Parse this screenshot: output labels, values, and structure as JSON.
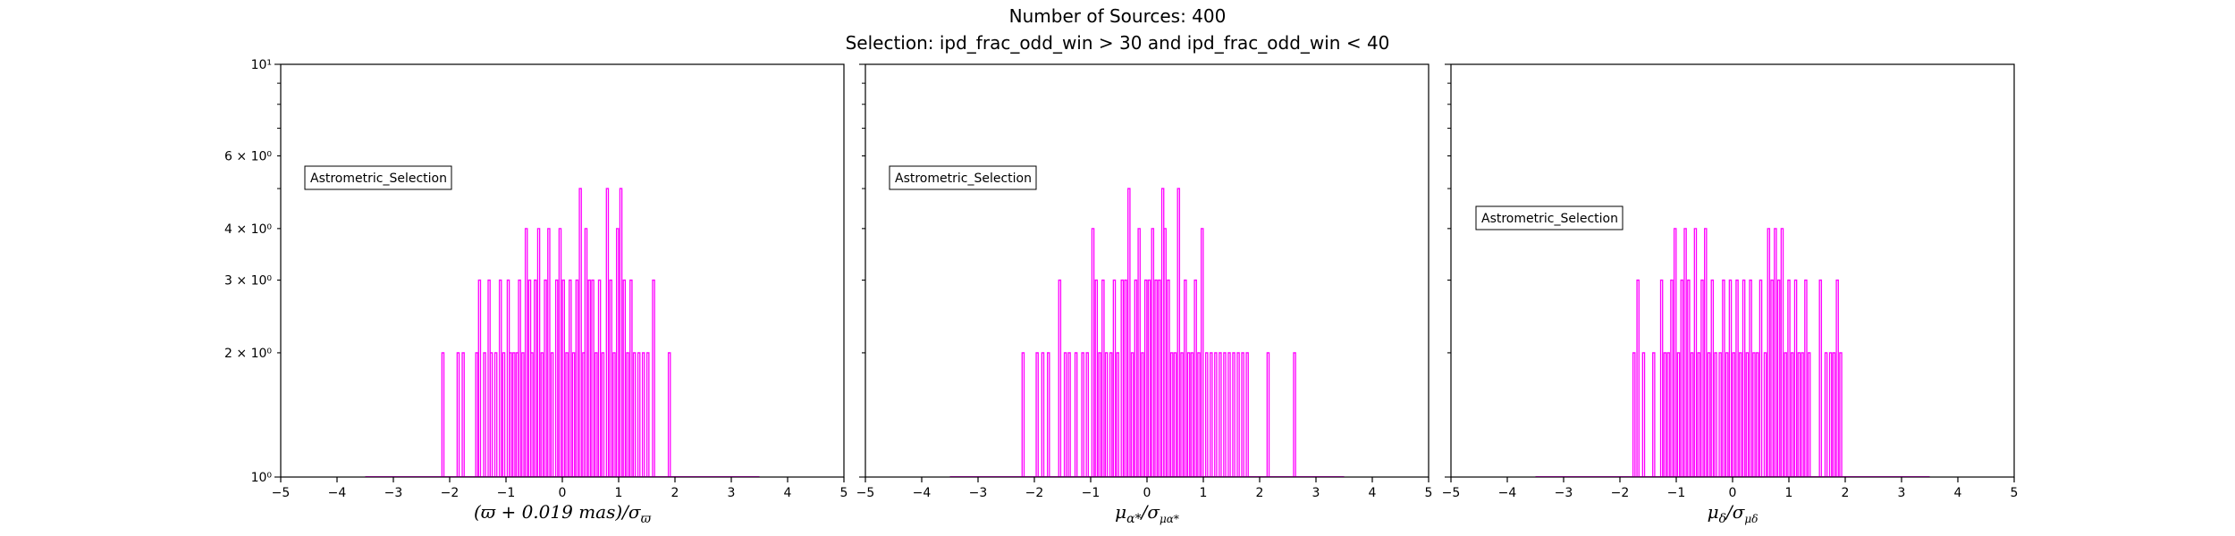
{
  "figure": {
    "title_line1": "Number of Sources: 400",
    "title_line2": "Selection: ipd_frac_odd_win > 30 and ipd_frac_odd_win < 40"
  },
  "chart_data": [
    {
      "type": "bar",
      "xlabel": "(ϖ + 0.019 mas)/σϖ",
      "ylabel": "",
      "xlim": [
        -5,
        5
      ],
      "ylim": [
        1,
        10
      ],
      "yscale": "log",
      "xticks": [
        "−5",
        "−4",
        "−3",
        "−2",
        "−1",
        "0",
        "1",
        "2",
        "3",
        "4",
        "5"
      ],
      "yticks": [
        {
          "value": 1,
          "label": "10⁰"
        },
        {
          "value": 2,
          "label": "2 × 10⁰"
        },
        {
          "value": 3,
          "label": "3 × 10⁰"
        },
        {
          "value": 4,
          "label": "4 × 10⁰"
        },
        {
          "value": 6,
          "label": "6 × 10⁰"
        },
        {
          "value": 10,
          "label": "10¹"
        }
      ],
      "legend": {
        "label": "Astrometric_Selection",
        "placement": "upper-left"
      },
      "color": "#ff00ff",
      "bins": [
        {
          "x": -2.12,
          "count": 2
        },
        {
          "x": -1.85,
          "count": 2
        },
        {
          "x": -1.76,
          "count": 2
        },
        {
          "x": -1.52,
          "count": 2
        },
        {
          "x": -1.47,
          "count": 3
        },
        {
          "x": -1.38,
          "count": 2
        },
        {
          "x": -1.3,
          "count": 3
        },
        {
          "x": -1.26,
          "count": 2
        },
        {
          "x": -1.18,
          "count": 2
        },
        {
          "x": -1.1,
          "count": 3
        },
        {
          "x": -1.04,
          "count": 2
        },
        {
          "x": -0.96,
          "count": 3
        },
        {
          "x": -0.92,
          "count": 2
        },
        {
          "x": -0.86,
          "count": 2
        },
        {
          "x": -0.8,
          "count": 2
        },
        {
          "x": -0.76,
          "count": 3
        },
        {
          "x": -0.7,
          "count": 2
        },
        {
          "x": -0.64,
          "count": 4
        },
        {
          "x": -0.58,
          "count": 3
        },
        {
          "x": -0.54,
          "count": 2
        },
        {
          "x": -0.48,
          "count": 3
        },
        {
          "x": -0.42,
          "count": 4
        },
        {
          "x": -0.36,
          "count": 2
        },
        {
          "x": -0.3,
          "count": 3
        },
        {
          "x": -0.24,
          "count": 4
        },
        {
          "x": -0.18,
          "count": 2
        },
        {
          "x": -0.1,
          "count": 3
        },
        {
          "x": -0.04,
          "count": 4
        },
        {
          "x": 0.02,
          "count": 3
        },
        {
          "x": 0.08,
          "count": 2
        },
        {
          "x": 0.14,
          "count": 3
        },
        {
          "x": 0.2,
          "count": 2
        },
        {
          "x": 0.26,
          "count": 3
        },
        {
          "x": 0.32,
          "count": 5
        },
        {
          "x": 0.38,
          "count": 2
        },
        {
          "x": 0.42,
          "count": 4
        },
        {
          "x": 0.48,
          "count": 3
        },
        {
          "x": 0.54,
          "count": 3
        },
        {
          "x": 0.6,
          "count": 2
        },
        {
          "x": 0.66,
          "count": 3
        },
        {
          "x": 0.72,
          "count": 2
        },
        {
          "x": 0.8,
          "count": 5
        },
        {
          "x": 0.86,
          "count": 3
        },
        {
          "x": 0.92,
          "count": 2
        },
        {
          "x": 0.98,
          "count": 4
        },
        {
          "x": 1.04,
          "count": 5
        },
        {
          "x": 1.1,
          "count": 3
        },
        {
          "x": 1.16,
          "count": 2
        },
        {
          "x": 1.22,
          "count": 3
        },
        {
          "x": 1.28,
          "count": 2
        },
        {
          "x": 1.36,
          "count": 2
        },
        {
          "x": 1.44,
          "count": 2
        },
        {
          "x": 1.52,
          "count": 2
        },
        {
          "x": 1.62,
          "count": 3
        },
        {
          "x": 1.9,
          "count": 2
        }
      ]
    },
    {
      "type": "bar",
      "xlabel": "μα*/σμα*",
      "ylabel": "",
      "xlim": [
        -5,
        5
      ],
      "ylim": [
        1,
        10
      ],
      "yscale": "log",
      "xticks": [
        "−5",
        "−4",
        "−3",
        "−2",
        "−1",
        "0",
        "1",
        "2",
        "3",
        "4",
        "5"
      ],
      "yticks": [
        {
          "value": 1,
          "label": ""
        },
        {
          "value": 2,
          "label": ""
        },
        {
          "value": 3,
          "label": ""
        },
        {
          "value": 4,
          "label": ""
        },
        {
          "value": 6,
          "label": ""
        },
        {
          "value": 10,
          "label": ""
        }
      ],
      "legend": {
        "label": "Astrometric_Selection",
        "placement": "upper-left"
      },
      "color": "#ff00ff",
      "bins": [
        {
          "x": -2.2,
          "count": 2
        },
        {
          "x": -1.95,
          "count": 2
        },
        {
          "x": -1.85,
          "count": 2
        },
        {
          "x": -1.75,
          "count": 2
        },
        {
          "x": -1.55,
          "count": 3
        },
        {
          "x": -1.45,
          "count": 2
        },
        {
          "x": -1.38,
          "count": 2
        },
        {
          "x": -1.26,
          "count": 2
        },
        {
          "x": -1.14,
          "count": 2
        },
        {
          "x": -1.06,
          "count": 2
        },
        {
          "x": -0.96,
          "count": 4
        },
        {
          "x": -0.9,
          "count": 3
        },
        {
          "x": -0.84,
          "count": 2
        },
        {
          "x": -0.78,
          "count": 3
        },
        {
          "x": -0.72,
          "count": 2
        },
        {
          "x": -0.64,
          "count": 2
        },
        {
          "x": -0.58,
          "count": 3
        },
        {
          "x": -0.52,
          "count": 2
        },
        {
          "x": -0.44,
          "count": 3
        },
        {
          "x": -0.38,
          "count": 3
        },
        {
          "x": -0.32,
          "count": 5
        },
        {
          "x": -0.26,
          "count": 2
        },
        {
          "x": -0.2,
          "count": 3
        },
        {
          "x": -0.14,
          "count": 4
        },
        {
          "x": -0.08,
          "count": 2
        },
        {
          "x": -0.02,
          "count": 3
        },
        {
          "x": 0.04,
          "count": 3
        },
        {
          "x": 0.1,
          "count": 4
        },
        {
          "x": 0.16,
          "count": 3
        },
        {
          "x": 0.22,
          "count": 3
        },
        {
          "x": 0.28,
          "count": 5
        },
        {
          "x": 0.32,
          "count": 4
        },
        {
          "x": 0.38,
          "count": 3
        },
        {
          "x": 0.44,
          "count": 2
        },
        {
          "x": 0.5,
          "count": 2
        },
        {
          "x": 0.56,
          "count": 5
        },
        {
          "x": 0.62,
          "count": 2
        },
        {
          "x": 0.68,
          "count": 3
        },
        {
          "x": 0.74,
          "count": 2
        },
        {
          "x": 0.8,
          "count": 2
        },
        {
          "x": 0.86,
          "count": 3
        },
        {
          "x": 0.92,
          "count": 2
        },
        {
          "x": 0.98,
          "count": 4
        },
        {
          "x": 1.06,
          "count": 2
        },
        {
          "x": 1.14,
          "count": 2
        },
        {
          "x": 1.22,
          "count": 2
        },
        {
          "x": 1.3,
          "count": 2
        },
        {
          "x": 1.38,
          "count": 2
        },
        {
          "x": 1.46,
          "count": 2
        },
        {
          "x": 1.54,
          "count": 2
        },
        {
          "x": 1.62,
          "count": 2
        },
        {
          "x": 1.7,
          "count": 2
        },
        {
          "x": 1.78,
          "count": 2
        },
        {
          "x": 2.15,
          "count": 2
        },
        {
          "x": 2.62,
          "count": 2
        }
      ]
    },
    {
      "type": "bar",
      "xlabel": "μδ/σμδ",
      "ylabel": "",
      "xlim": [
        -5,
        5
      ],
      "ylim": [
        1,
        10
      ],
      "yscale": "log",
      "xticks": [
        "−5",
        "−4",
        "−3",
        "−2",
        "−1",
        "0",
        "1",
        "2",
        "3",
        "4",
        "5"
      ],
      "yticks": [
        {
          "value": 1,
          "label": ""
        },
        {
          "value": 2,
          "label": ""
        },
        {
          "value": 3,
          "label": ""
        },
        {
          "value": 4,
          "label": ""
        },
        {
          "value": 6,
          "label": ""
        },
        {
          "value": 10,
          "label": ""
        }
      ],
      "legend": {
        "label": "Astrometric_Selection",
        "placement": "upper-left"
      },
      "color": "#ff00ff",
      "bins": [
        {
          "x": -1.75,
          "count": 2
        },
        {
          "x": -1.68,
          "count": 3
        },
        {
          "x": -1.58,
          "count": 2
        },
        {
          "x": -1.4,
          "count": 2
        },
        {
          "x": -1.26,
          "count": 3
        },
        {
          "x": -1.2,
          "count": 2
        },
        {
          "x": -1.14,
          "count": 2
        },
        {
          "x": -1.08,
          "count": 3
        },
        {
          "x": -1.02,
          "count": 4
        },
        {
          "x": -0.96,
          "count": 2
        },
        {
          "x": -0.9,
          "count": 3
        },
        {
          "x": -0.84,
          "count": 4
        },
        {
          "x": -0.78,
          "count": 3
        },
        {
          "x": -0.72,
          "count": 2
        },
        {
          "x": -0.66,
          "count": 4
        },
        {
          "x": -0.6,
          "count": 2
        },
        {
          "x": -0.54,
          "count": 3
        },
        {
          "x": -0.48,
          "count": 4
        },
        {
          "x": -0.42,
          "count": 2
        },
        {
          "x": -0.36,
          "count": 3
        },
        {
          "x": -0.3,
          "count": 2
        },
        {
          "x": -0.22,
          "count": 2
        },
        {
          "x": -0.16,
          "count": 3
        },
        {
          "x": -0.1,
          "count": 2
        },
        {
          "x": -0.04,
          "count": 3
        },
        {
          "x": 0.02,
          "count": 2
        },
        {
          "x": 0.08,
          "count": 3
        },
        {
          "x": 0.14,
          "count": 2
        },
        {
          "x": 0.2,
          "count": 3
        },
        {
          "x": 0.26,
          "count": 2
        },
        {
          "x": 0.32,
          "count": 3
        },
        {
          "x": 0.38,
          "count": 2
        },
        {
          "x": 0.44,
          "count": 2
        },
        {
          "x": 0.5,
          "count": 3
        },
        {
          "x": 0.58,
          "count": 2
        },
        {
          "x": 0.64,
          "count": 4
        },
        {
          "x": 0.7,
          "count": 3
        },
        {
          "x": 0.76,
          "count": 4
        },
        {
          "x": 0.82,
          "count": 3
        },
        {
          "x": 0.88,
          "count": 4
        },
        {
          "x": 0.94,
          "count": 2
        },
        {
          "x": 1.0,
          "count": 3
        },
        {
          "x": 1.06,
          "count": 2
        },
        {
          "x": 1.12,
          "count": 3
        },
        {
          "x": 1.18,
          "count": 2
        },
        {
          "x": 1.24,
          "count": 2
        },
        {
          "x": 1.3,
          "count": 3
        },
        {
          "x": 1.36,
          "count": 2
        },
        {
          "x": 1.56,
          "count": 3
        },
        {
          "x": 1.66,
          "count": 2
        },
        {
          "x": 1.74,
          "count": 2
        },
        {
          "x": 1.8,
          "count": 2
        },
        {
          "x": 1.86,
          "count": 3
        },
        {
          "x": 1.92,
          "count": 2
        }
      ]
    }
  ]
}
